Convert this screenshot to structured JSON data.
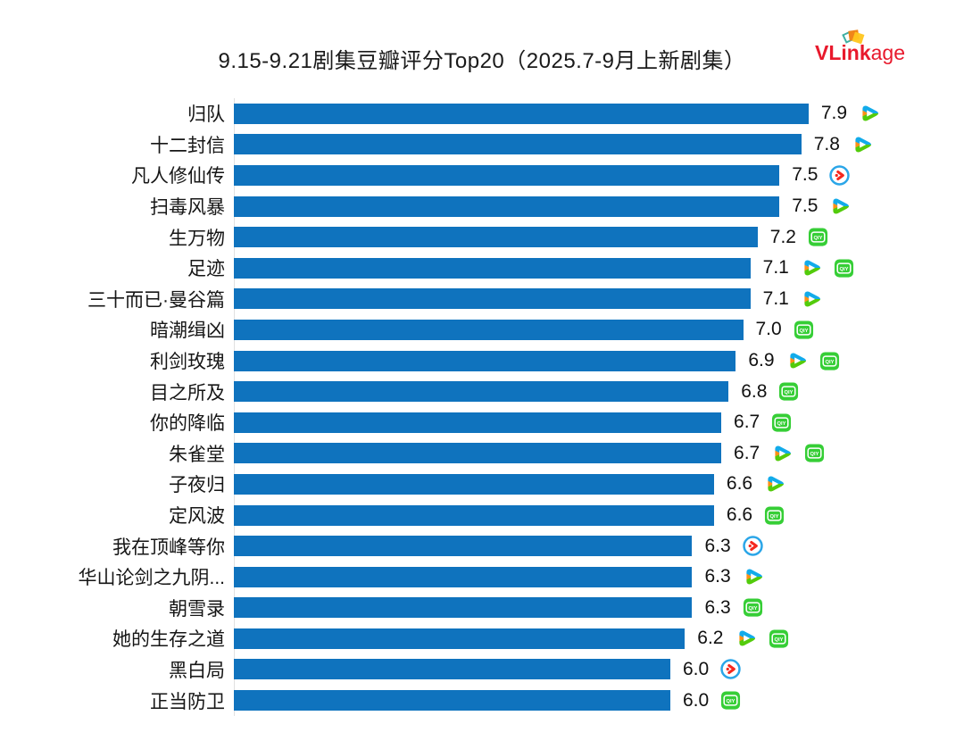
{
  "title": "9.15-9.21剧集豆瓣评分Top20（2025.7-9月上新剧集）",
  "logo": {
    "bold": "VLink",
    "light": "age",
    "color": "#e8192c"
  },
  "colors": {
    "bar": "#0f73be",
    "axis_line": "#e0e0e0",
    "iqiyi_green": "#36ce36",
    "youku_ring_blue": "#2ba6e8",
    "youku_arrow_red": "#f5281e",
    "tencent_blue": "#12abea",
    "tencent_green": "#53cb0b",
    "tencent_orange": "#ff9015"
  },
  "chart_data": {
    "type": "bar",
    "orientation": "horizontal",
    "title": "9.15-9.21剧集豆瓣评分Top20（2025.7-9月上新剧集）",
    "xlabel": "",
    "ylabel": "",
    "xlim": [
      0,
      8.5
    ],
    "grid": false,
    "legend": false,
    "bar_color": "#0f73be",
    "categories": [
      "归队",
      "十二封信",
      "凡人修仙传",
      "扫毒风暴",
      "生万物",
      "足迹",
      "三十而已·曼谷篇",
      "暗潮缉凶",
      "利剑玫瑰",
      "目之所及",
      "你的降临",
      "朱雀堂",
      "子夜归",
      "定风波",
      "我在顶峰等你",
      "华山论剑之九阴...",
      "朝雪录",
      "她的生存之道",
      "黑白局",
      "正当防卫"
    ],
    "values": [
      7.9,
      7.8,
      7.5,
      7.5,
      7.2,
      7.1,
      7.1,
      7.0,
      6.9,
      6.8,
      6.7,
      6.7,
      6.6,
      6.6,
      6.3,
      6.3,
      6.3,
      6.2,
      6.0,
      6.0
    ],
    "value_labels": [
      "7.9",
      "7.8",
      "7.5",
      "7.5",
      "7.2",
      "7.1",
      "7.1",
      "7.0",
      "6.9",
      "6.8",
      "6.7",
      "6.7",
      "6.6",
      "6.6",
      "6.3",
      "6.3",
      "6.3",
      "6.2",
      "6.0",
      "6.0"
    ],
    "platforms": [
      [
        "tencent-video"
      ],
      [
        "tencent-video"
      ],
      [
        "youku"
      ],
      [
        "tencent-video"
      ],
      [
        "iqiyi"
      ],
      [
        "tencent-video",
        "iqiyi"
      ],
      [
        "tencent-video"
      ],
      [
        "iqiyi"
      ],
      [
        "tencent-video",
        "iqiyi"
      ],
      [
        "iqiyi"
      ],
      [
        "iqiyi"
      ],
      [
        "tencent-video",
        "iqiyi"
      ],
      [
        "tencent-video"
      ],
      [
        "iqiyi"
      ],
      [
        "youku"
      ],
      [
        "tencent-video"
      ],
      [
        "iqiyi"
      ],
      [
        "tencent-video",
        "iqiyi"
      ],
      [
        "youku"
      ],
      [
        "iqiyi"
      ]
    ]
  }
}
